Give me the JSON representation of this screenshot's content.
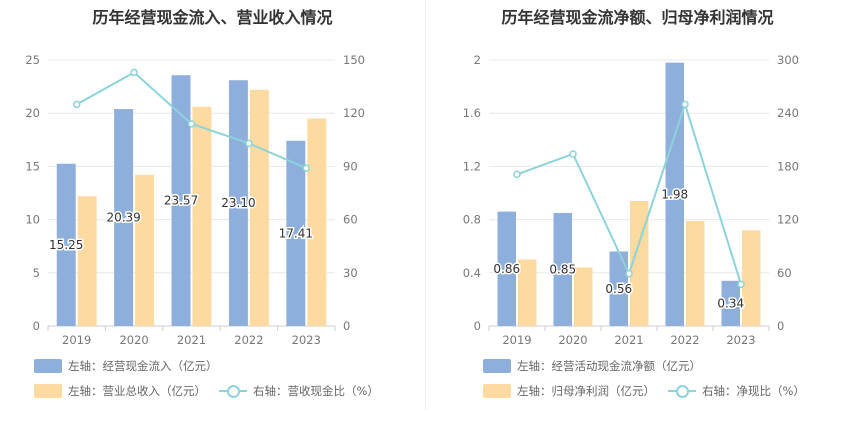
{
  "chart_data": [
    {
      "type": "bar",
      "title": "历年经营现金流入、营业收入情况",
      "categories": [
        "2019",
        "2020",
        "2021",
        "2022",
        "2023"
      ],
      "y_left": {
        "ticks": [
          "0",
          "5",
          "10",
          "15",
          "20",
          "25"
        ],
        "ylim": [
          0,
          25
        ]
      },
      "y_right": {
        "ticks": [
          "0",
          "30",
          "60",
          "90",
          "120",
          "150"
        ],
        "ylim": [
          0,
          150
        ]
      },
      "series": [
        {
          "name": "左轴：经营现金流入（亿元）",
          "axis": "left",
          "type": "bar",
          "color": "#8eaedc",
          "values": [
            15.25,
            20.39,
            23.57,
            23.1,
            17.41
          ],
          "labels": [
            "15.25",
            "20.39",
            "23.57",
            "23.10",
            "17.41"
          ]
        },
        {
          "name": "左轴：营业总收入（亿元）",
          "axis": "left",
          "type": "bar",
          "color": "#fddaa0",
          "values": [
            12.2,
            14.2,
            20.6,
            22.2,
            19.5
          ]
        },
        {
          "name": "右轴：营收现金比（%）",
          "axis": "right",
          "type": "line",
          "color": "#8dd3da",
          "values": [
            125,
            143,
            114,
            103,
            89
          ]
        }
      ],
      "grid": true,
      "legend_position": "bottom-left"
    },
    {
      "type": "bar",
      "title": "历年经营现金流净额、归母净利润情况",
      "categories": [
        "2019",
        "2020",
        "2021",
        "2022",
        "2023"
      ],
      "y_left": {
        "ticks": [
          "0",
          "0.4",
          "0.8",
          "1.2",
          "1.6",
          "2"
        ],
        "ylim": [
          0,
          2
        ]
      },
      "y_right": {
        "ticks": [
          "0",
          "60",
          "120",
          "180",
          "240",
          "300"
        ],
        "ylim": [
          0,
          300
        ]
      },
      "series": [
        {
          "name": "左轴：经营活动现金流净额（亿元）",
          "axis": "left",
          "type": "bar",
          "color": "#8eaedc",
          "values": [
            0.86,
            0.85,
            0.56,
            1.98,
            0.34
          ],
          "labels": [
            "0.86",
            "0.85",
            "0.56",
            "1.98",
            "0.34"
          ]
        },
        {
          "name": "左轴：归母净利润（亿元）",
          "axis": "left",
          "type": "bar",
          "color": "#fddaa0",
          "values": [
            0.5,
            0.44,
            0.94,
            0.79,
            0.72
          ]
        },
        {
          "name": "右轴：净现比（%）",
          "axis": "right",
          "type": "line",
          "color": "#8dd3da",
          "values": [
            171,
            194,
            59,
            250,
            47
          ]
        }
      ],
      "grid": true,
      "legend_position": "bottom-left"
    }
  ]
}
